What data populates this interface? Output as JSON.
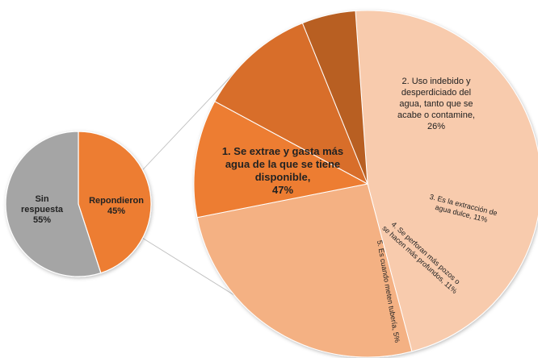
{
  "chart_data": [
    {
      "type": "pie",
      "slices": [
        {
          "label": "Repondieron",
          "value": 45,
          "value_label": "45%",
          "color": "#ED7D31"
        },
        {
          "label": "Sin respuesta",
          "value": 55,
          "value_label": "55%",
          "color": "#A5A5A5"
        }
      ]
    },
    {
      "type": "pie",
      "slices": [
        {
          "label": "1. Se extrae y gasta más agua de la que se tiene disponible,",
          "value": 47,
          "value_label": "47%",
          "color": "#F8CBAD"
        },
        {
          "label": "2. Uso indebido y desperdiciado del agua, tanto que se acabe o contamine,",
          "value": 26,
          "value_label": "26%",
          "color": "#F4B183"
        },
        {
          "label": "3. Es la extracción de agua dulce,",
          "value": 11,
          "value_label": "11%",
          "color": "#ED7D31"
        },
        {
          "label": "4. Se perforan más pozos o se hacen más profundos,",
          "value": 11,
          "value_label": "11%",
          "color": "#D86E2A"
        },
        {
          "label": "5. Es cuando meten tubería,",
          "value": 5,
          "value_label": "5%",
          "color": "#B85E22"
        }
      ]
    }
  ]
}
